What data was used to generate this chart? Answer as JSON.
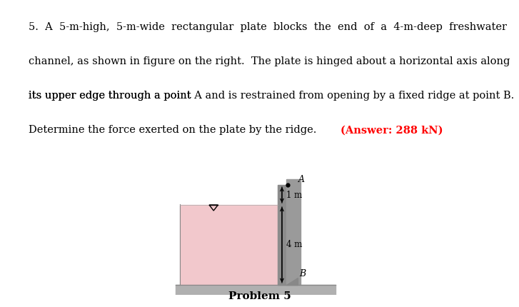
{
  "caption": "Problem 5",
  "water_color": "#f2c8cc",
  "plate_color": "#8c8c8c",
  "wall_color": "#9a9a9a",
  "ground_color": "#b0b0b0",
  "fig_bg": "#ffffff",
  "label_1m": "1 m",
  "label_4m": "4 m",
  "label_A": "A",
  "label_B": "B",
  "line1": "5.  A  5-m-high,  5-m-wide  rectangular  plate  blocks  the  end  of  a  4-m-deep  freshwater",
  "line2": "channel, as shown in figure on the right.  The plate is hinged about a horizontal axis along",
  "line3a": "its upper edge through a point ",
  "line3b": "A",
  "line3c": " and is restrained from opening by a fixed ridge at point ",
  "line3d": "B",
  "line3e": ".",
  "line4a": "Determine the force exerted on the plate by the ridge.  ",
  "line4b": "(Answer: 288 kN)",
  "fs": 10.5,
  "serif": "DejaVu Serif"
}
